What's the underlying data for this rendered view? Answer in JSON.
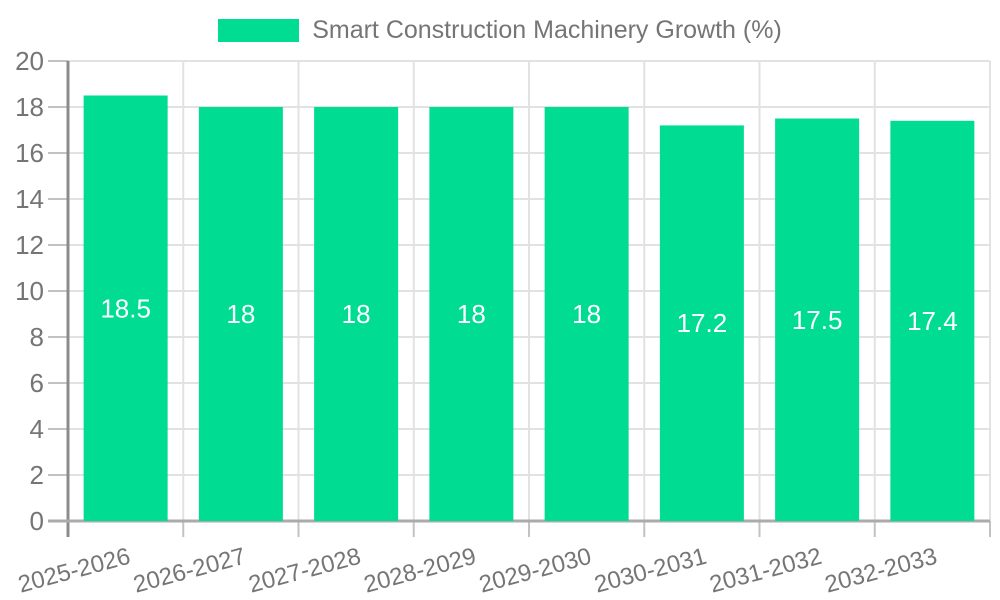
{
  "chart_data": {
    "type": "bar",
    "title": "Smart Construction Machinery Growth (%)",
    "legend": {
      "label": "Smart Construction Machinery Growth (%)",
      "position": "top-center"
    },
    "categories": [
      "2025-2026",
      "2026-2027",
      "2027-2028",
      "2028-2029",
      "2029-2030",
      "2030-2031",
      "2031-2032",
      "2032-2033"
    ],
    "series": [
      {
        "name": "Smart Construction Machinery Growth (%)",
        "values": [
          18.5,
          18,
          18,
          18,
          18,
          17.2,
          17.5,
          17.4
        ],
        "value_labels": [
          "18.5",
          "18",
          "18",
          "18",
          "18",
          "17.2",
          "17.5",
          "17.4"
        ]
      }
    ],
    "xlabel": "",
    "ylabel": "",
    "ylim": [
      0,
      20
    ],
    "ytick_step": 2,
    "ytick_labels": [
      "0",
      "2",
      "4",
      "6",
      "8",
      "10",
      "12",
      "14",
      "16",
      "18",
      "20"
    ],
    "grid": "on",
    "x_label_rotation_deg": -15,
    "colors": {
      "bar": "#00dc92",
      "value_label": "#ffffff",
      "axis_text": "#757575",
      "grid_line": "#e2e2e2",
      "y_axis_line": "#8c8c8c",
      "x_axis_line": "#ababab",
      "tick_line": "#c2c2c2",
      "plot_border": "#e2e2e2"
    }
  }
}
